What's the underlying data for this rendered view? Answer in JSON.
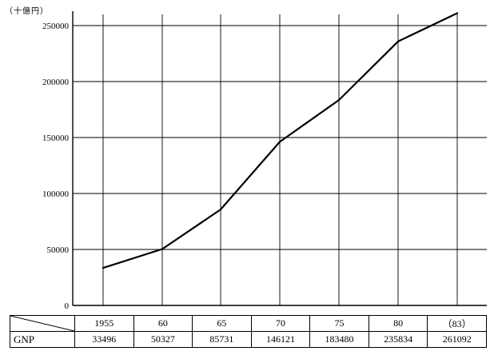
{
  "unit_label": "（十億円）",
  "chart_data": {
    "type": "line",
    "title": "",
    "xlabel": "",
    "ylabel": "（十億円）",
    "categories": [
      "1955",
      "60",
      "65",
      "70",
      "75",
      "80",
      "(83)"
    ],
    "series": [
      {
        "name": "GNP",
        "values": [
          33496,
          50327,
          85731,
          146121,
          183480,
          235834,
          261092
        ]
      }
    ],
    "ylim": [
      0,
      260000
    ],
    "yticks": [
      0,
      50000,
      100000,
      150000,
      200000,
      250000
    ],
    "grid": true,
    "legend": "none"
  },
  "table": {
    "header_row": [
      "1955",
      "60",
      "65",
      "70",
      "75",
      "80",
      "（83）"
    ],
    "row_label": "GNP",
    "values": [
      "33496",
      "50327",
      "85731",
      "146121",
      "183480",
      "235834",
      "261092"
    ]
  }
}
